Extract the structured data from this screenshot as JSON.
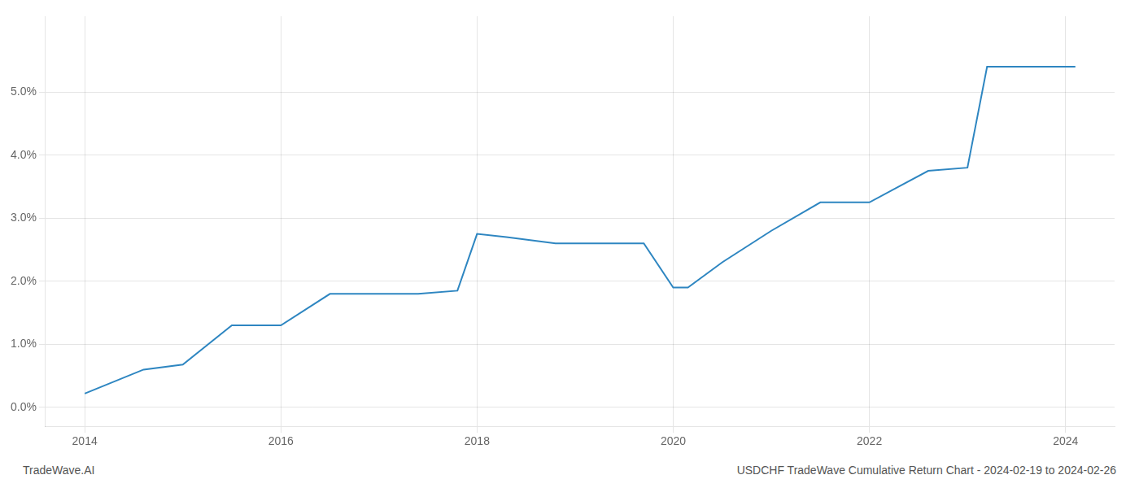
{
  "chart_data": {
    "type": "line",
    "x": [
      2014.0,
      2014.6,
      2015.0,
      2015.5,
      2016.0,
      2016.5,
      2017.0,
      2017.4,
      2017.8,
      2018.0,
      2018.3,
      2018.8,
      2019.2,
      2019.7,
      2020.0,
      2020.15,
      2020.5,
      2021.0,
      2021.5,
      2022.0,
      2022.3,
      2022.6,
      2023.0,
      2023.2,
      2023.5,
      2024.0,
      2024.1
    ],
    "values": [
      0.0022,
      0.006,
      0.0068,
      0.013,
      0.013,
      0.018,
      0.018,
      0.018,
      0.0185,
      0.0275,
      0.027,
      0.026,
      0.026,
      0.026,
      0.019,
      0.019,
      0.023,
      0.028,
      0.0325,
      0.0325,
      0.035,
      0.0375,
      0.038,
      0.054,
      0.054,
      0.054,
      0.054
    ],
    "color": "#2E86C1",
    "xlim": [
      2013.6,
      2024.5
    ],
    "ylim": [
      -0.003,
      0.062
    ],
    "xticks": [
      2014,
      2016,
      2018,
      2020,
      2022,
      2024
    ],
    "yticks": [
      {
        "value": 0.0,
        "label": "0.0%"
      },
      {
        "value": 0.01,
        "label": "1.0%"
      },
      {
        "value": 0.02,
        "label": "2.0%"
      },
      {
        "value": 0.03,
        "label": "3.0%"
      },
      {
        "value": 0.04,
        "label": "4.0%"
      },
      {
        "value": 0.05,
        "label": "5.0%"
      }
    ],
    "grid": true,
    "annotations": [
      "TradeWave.AI",
      "USDCHF TradeWave Cumulative Return Chart - 2024-02-19 to 2024-02-26"
    ]
  }
}
